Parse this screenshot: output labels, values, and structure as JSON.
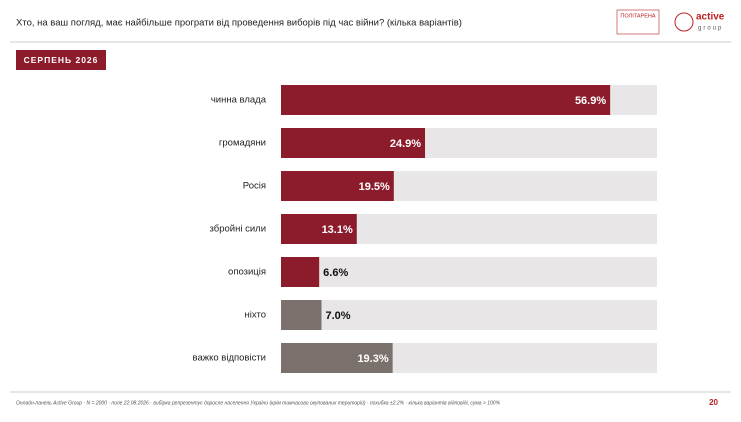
{
  "chart_data": {
    "type": "hbar",
    "title": "Хто, на ваш погляд, має найбільше програти від проведення виборів під час війни? (кілька варіантів)",
    "period": "СЕРПЕНЬ 2026",
    "categories": [
      "чинна влада",
      "громадяни",
      "Росія",
      "збройні сили",
      "опозиція",
      "ніхто",
      "важко відповісти"
    ],
    "values": [
      56.9,
      24.9,
      19.5,
      13.1,
      6.6,
      7.0,
      19.3
    ],
    "value_labels": [
      "56.9%",
      "24.9%",
      "19.5%",
      "13.1%",
      "6.6%",
      "7.0%",
      "19.3%"
    ],
    "colors": [
      "#8c1c2c",
      "#8c1c2c",
      "#8c1c2c",
      "#8c1c2c",
      "#8c1c2c",
      "#7a716c",
      "#7a716c"
    ],
    "xlim": [
      0,
      65
    ],
    "footnote": "Онлайн-панель Active Group · N = 2000 · поле 22.08.2026 · вибірка репрезентує доросле населення України (крім тимчасово окупованих територій) · похибка ±2.2% · кілька варіантів відповіді, сума > 100%",
    "page_number": "20",
    "logos": [
      "ПОЛІТАРЕНА",
      "active",
      "group"
    ]
  }
}
